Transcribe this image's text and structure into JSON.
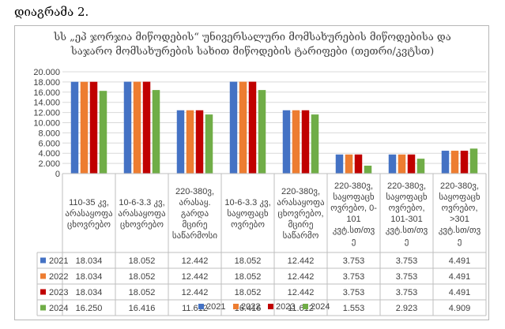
{
  "caption": "დიაგრამა 2.",
  "chart_data": {
    "type": "bar",
    "title_lines": [
      "სს „ეპ ჯორჯია მიწოდების“ უნივერსალური მომსახურების მიწოდებისა და",
      "საჯარო მომსახურების სახით მიწოდების ტარიფები (თეთრი/კვტსთ)"
    ],
    "categories": [
      [
        "110-35 კვ,",
        "არასაყოფა",
        "ცხოვრებო"
      ],
      [
        "10-6-3.3 კვ,",
        "არასაყოფა",
        "ცხოვრებო"
      ],
      [
        "220-380ვ,",
        "არასაყ.",
        "გარდა",
        "მცირე",
        "საწარმოსი"
      ],
      [
        "10-6-3.3 კვ,",
        "საყოფაცხ",
        "ოვრებო"
      ],
      [
        "220-380ვ,",
        "არასაყოფა",
        "ცხოვრებო,",
        "მცირე",
        "საწარმო"
      ],
      [
        "220-380ვ,",
        "საყოფაცხ",
        "ოვრებო, 0-",
        "101",
        "კვტ.სთ/თვ",
        "ე"
      ],
      [
        "220-380ვ,",
        "საყოფაცხ",
        "ოვრებო,",
        "101-301",
        "კვტ.სთ/თვ",
        "ე"
      ],
      [
        "220-380ვ,",
        "საყოფაცხ",
        "ოვრებო,",
        ">301",
        "კვტ.სთ/თვ",
        "ე"
      ]
    ],
    "series": [
      {
        "name": "2021",
        "color": "#4472C4",
        "values": [
          18.034,
          18.052,
          12.442,
          18.052,
          12.442,
          3.753,
          3.753,
          4.491
        ],
        "labels": [
          "18.034",
          "18.052",
          "12.442",
          "18.052",
          "12.442",
          "3.753",
          "3.753",
          "4.491"
        ]
      },
      {
        "name": "2022",
        "color": "#ED7D31",
        "values": [
          18.034,
          18.052,
          12.442,
          18.052,
          12.442,
          3.753,
          3.753,
          4.491
        ],
        "labels": [
          "18.034",
          "18.052",
          "12.442",
          "18.052",
          "12.442",
          "3.753",
          "3.753",
          "4.491"
        ]
      },
      {
        "name": "2023",
        "color": "#C00000",
        "values": [
          18.034,
          18.052,
          12.442,
          18.052,
          12.442,
          3.753,
          3.753,
          4.491
        ],
        "labels": [
          "18.034",
          "18.052",
          "12.442",
          "18.052",
          "12.442",
          "3.753",
          "3.753",
          "4.491"
        ]
      },
      {
        "name": "2024",
        "color": "#70AD47",
        "values": [
          16.25,
          16.416,
          11.612,
          16.416,
          11.612,
          1.553,
          2.923,
          4.909
        ],
        "labels": [
          "16.250",
          "16.416",
          "11.612",
          "16.416",
          "11.612",
          "1.553",
          "2.923",
          "4.909"
        ]
      }
    ],
    "yticks": [
      "0",
      "2.000",
      "4.000",
      "6.000",
      "8.000",
      "10.000",
      "12.000",
      "14.000",
      "16.000",
      "18.000",
      "20.000"
    ],
    "ylim": [
      0,
      20
    ],
    "ystep": 2,
    "grid": true,
    "legend_position": "bottom",
    "data_table": true
  }
}
